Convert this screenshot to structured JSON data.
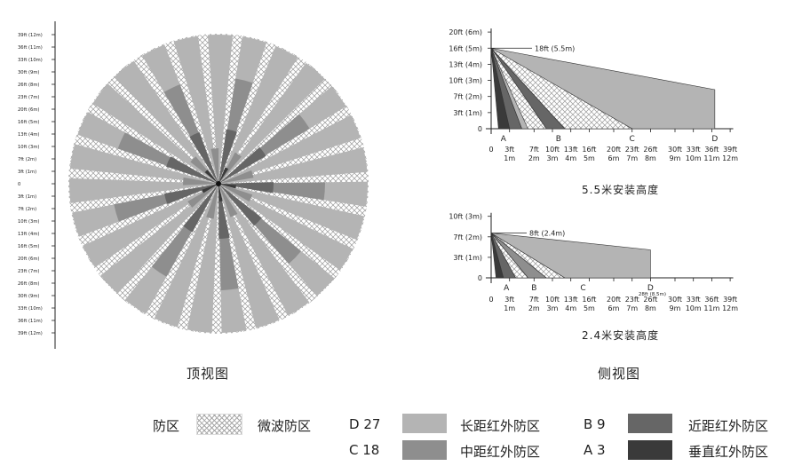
{
  "top_view": {
    "scale_labels": [
      "39ft (12m)",
      "36ft (11m)",
      "33ft (10m)",
      "30ft (9m)",
      "26ft (8m)",
      "23ft (7m)",
      "20ft (6m)",
      "16ft (5m)",
      "13ft (4m)",
      "10ft (3m)",
      "7ft (2m)",
      "3ft (1m)",
      "0",
      "3ft (1m)",
      "7ft (2m)",
      "10ft (3m)",
      "13ft (4m)",
      "16ft (5m)",
      "20ft (6m)",
      "23ft (7m)",
      "26ft (8m)",
      "30ft (9m)",
      "33ft (10m)",
      "36ft (11m)",
      "39ft (12m)"
    ],
    "caption": "顶视图"
  },
  "side_views": [
    {
      "y_labels": [
        "20ft (6m)",
        "16ft (5m)",
        "13ft (4m)",
        "10ft (3m)",
        "7ft (2m)",
        "3ft (1m)",
        "0"
      ],
      "mount_label": "18ft (5.5m)",
      "zone_letters": [
        "A",
        "B",
        "C",
        "D"
      ],
      "x_ft": [
        "0",
        "3ft",
        "7ft",
        "10ft",
        "13ft",
        "16ft",
        "20ft",
        "23ft",
        "26ft",
        "30ft",
        "33ft",
        "36ft",
        "39ft"
      ],
      "x_m": [
        "1m",
        "2m",
        "3m",
        "4m",
        "5m",
        "6m",
        "7m",
        "8m",
        "9m",
        "10m",
        "11m",
        "12m"
      ],
      "caption": "5.5米安装高度"
    },
    {
      "y_labels": [
        "10ft (3m)",
        "7ft (2m)",
        "3ft (1m)",
        "0"
      ],
      "mount_label": "8ft (2.4m)",
      "zone_letters": [
        "A",
        "B",
        "C",
        "D"
      ],
      "d_note": "28ft (8.5m)",
      "x_ft": [
        "0",
        "3ft",
        "7ft",
        "10ft",
        "13ft",
        "16ft",
        "20ft",
        "23ft",
        "26ft",
        "30ft",
        "33ft",
        "36ft",
        "39ft"
      ],
      "x_m": [
        "1m",
        "2m",
        "3m",
        "4m",
        "5m",
        "6m",
        "7m",
        "8m",
        "9m",
        "10m",
        "11m",
        "12m"
      ],
      "caption": "2.4米安装高度"
    }
  ],
  "side_caption": "侧视图",
  "legend": {
    "zone_label": "防区",
    "microwave_label": "微波防区",
    "items": [
      {
        "code": "D 27",
        "label": "长距红外防区",
        "color": "#b4b4b4"
      },
      {
        "code": "C 18",
        "label": "中距红外防区",
        "color": "#8e8e8e"
      },
      {
        "code": "B 9",
        "label": "近距红外防区",
        "color": "#666666"
      },
      {
        "code": "A 3",
        "label": "垂直红外防区",
        "color": "#3a3a3a"
      }
    ]
  },
  "colors": {
    "D": "#b4b4b4",
    "C": "#8e8e8e",
    "B": "#666666",
    "A": "#3a3a3a"
  }
}
